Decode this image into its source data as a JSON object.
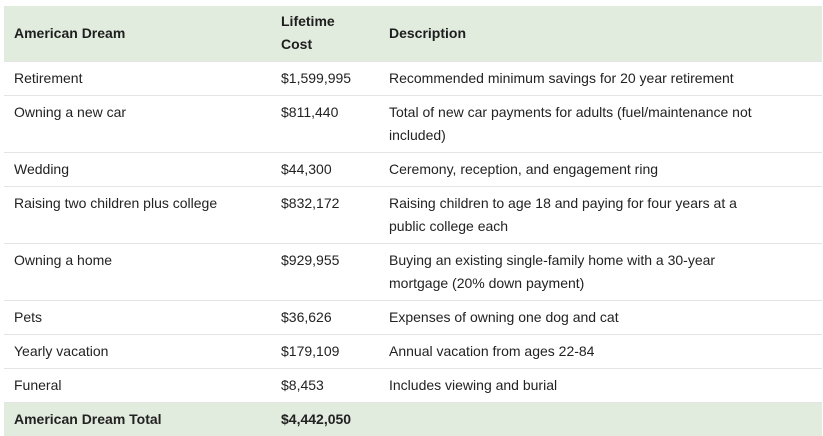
{
  "table": {
    "headers": {
      "item": "American Dream",
      "cost_line1": "Lifetime",
      "cost_line2": "Cost",
      "description": "Description"
    },
    "rows": [
      {
        "item": "Retirement",
        "cost": "$1,599,995",
        "description": "Recommended minimum savings for 20 year retirement"
      },
      {
        "item": "Owning a new car",
        "cost": "$811,440",
        "description": "Total of new car payments for adults (fuel/maintenance not included)"
      },
      {
        "item": "Wedding",
        "cost": "$44,300",
        "description": "Ceremony, reception, and engagement ring"
      },
      {
        "item": "Raising two children plus college",
        "cost": "$832,172",
        "description": "Raising children to age 18 and paying for four years at a public college each"
      },
      {
        "item": "Owning a home",
        "cost": "$929,955",
        "description": "Buying an existing single-family home with a 30-year mortgage (20% down payment)"
      },
      {
        "item": "Pets",
        "cost": "$36,626",
        "description": "Expenses of owning one dog and cat"
      },
      {
        "item": "Yearly vacation",
        "cost": "$179,109",
        "description": "Annual vacation from ages 22-84"
      },
      {
        "item": "Funeral",
        "cost": "$8,453",
        "description": "Includes viewing and burial"
      }
    ],
    "total": {
      "label": "American Dream Total",
      "cost": "$4,442,050"
    }
  },
  "colors": {
    "header_bg": "#e1ecde",
    "row_border": "#e2e4e6",
    "text": "#222222"
  }
}
